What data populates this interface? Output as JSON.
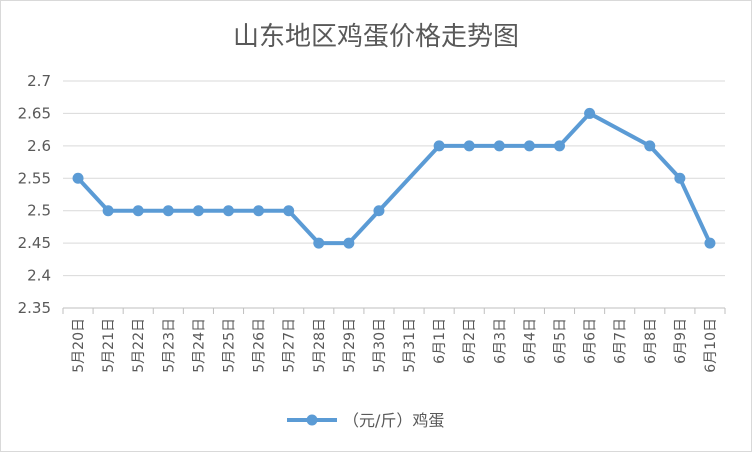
{
  "chart_data": {
    "type": "line",
    "title": "山东地区鸡蛋价格走势图",
    "xlabel": "",
    "ylabel": "",
    "ylim": [
      2.35,
      2.7
    ],
    "yticks": [
      "2.35",
      "2.4",
      "2.45",
      "2.5",
      "2.55",
      "2.6",
      "2.65",
      "2.7"
    ],
    "grid": true,
    "legend_position": "bottom",
    "categories": [
      "5月20日",
      "5月21日",
      "5月22日",
      "5月23日",
      "5月24日",
      "5月25日",
      "5月26日",
      "5月27日",
      "5月28日",
      "5月29日",
      "5月30日",
      "5月31日",
      "6月1日",
      "6月2日",
      "6月3日",
      "6月4日",
      "6月5日",
      "6月6日",
      "6月7日",
      "6月8日",
      "6月9日",
      "6月10日"
    ],
    "series": [
      {
        "name": "（元/斤）鸡蛋",
        "color": "#5B9BD5",
        "values": [
          2.55,
          2.5,
          2.5,
          2.5,
          2.5,
          2.5,
          2.5,
          2.5,
          2.45,
          2.45,
          2.5,
          null,
          2.6,
          2.6,
          2.6,
          2.6,
          2.6,
          2.65,
          null,
          2.6,
          2.55,
          2.45
        ]
      }
    ]
  }
}
